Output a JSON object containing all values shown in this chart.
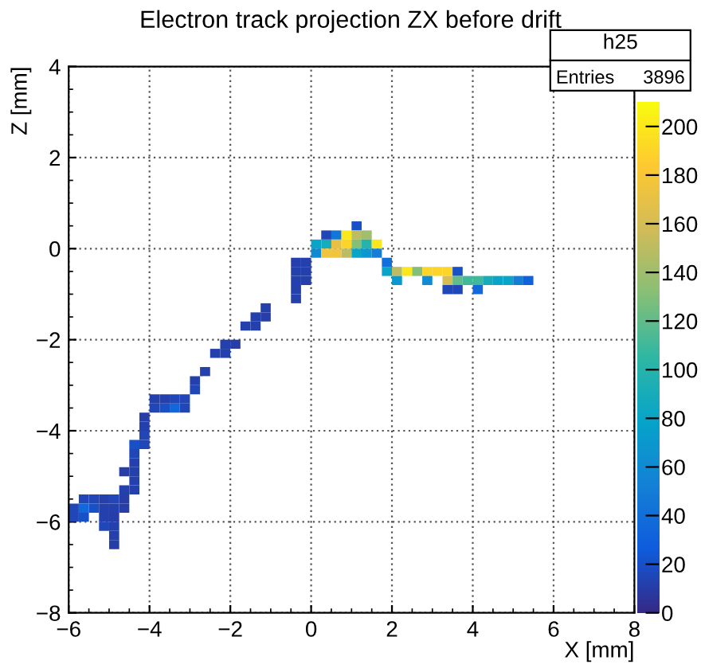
{
  "chart_data": {
    "type": "scatter",
    "title": "Electron track projection ZX before drift",
    "xlabel": "X [mm]",
    "ylabel": "Z [mm]",
    "annotations": [
      "h25",
      "Entries",
      "3896"
    ],
    "marker": "square",
    "grid": true,
    "xlim": [
      -6,
      8
    ],
    "ylim": [
      -8,
      4
    ],
    "xticks": [
      -6,
      -4,
      -2,
      0,
      2,
      4,
      6,
      8
    ],
    "yticks": [
      -8,
      -6,
      -4,
      -2,
      0,
      2,
      4
    ],
    "clim": [
      0,
      210
    ],
    "cticks": [
      0,
      20,
      40,
      60,
      80,
      100,
      120,
      140,
      160,
      180,
      200
    ],
    "x": [
      -5.625,
      -5.375,
      -5.125,
      -4.875,
      -4.625,
      -5.875,
      -5.625,
      -5.375,
      -5.125,
      -4.875,
      -4.625,
      -5.875,
      -5.625,
      -5.125,
      -4.875,
      -5.125,
      -4.875,
      -4.875,
      -4.875,
      -4.625,
      -4.375,
      -4.375,
      -4.375,
      -4.625,
      -4.375,
      -4.375,
      -4.125,
      -4.375,
      -4.125,
      -4.125,
      -4.125,
      -3.875,
      -3.875,
      -3.625,
      -3.625,
      -3.375,
      -3.375,
      -3.125,
      -3.125,
      -2.875,
      -2.875,
      -2.625,
      -2.375,
      -2.125,
      -2.125,
      -1.875,
      -1.625,
      -1.375,
      -1.375,
      -1.125,
      -1.125,
      -0.375,
      -0.375,
      -0.375,
      -0.375,
      -0.375,
      -0.125,
      -0.125,
      -0.125,
      1.125,
      0.375,
      0.625,
      0.875,
      1.125,
      1.375,
      0.125,
      0.375,
      0.625,
      0.875,
      1.125,
      1.375,
      1.625,
      0.125,
      0.375,
      0.625,
      0.875,
      1.125,
      1.375,
      1.625,
      1.875,
      1.875,
      2.125,
      2.375,
      2.625,
      2.875,
      3.125,
      3.375,
      3.625,
      2.125,
      2.875,
      3.375,
      3.625,
      3.875,
      4.125,
      4.375,
      4.625,
      4.875,
      5.125,
      5.375,
      3.375,
      3.625,
      4.125
    ],
    "values": [
      -5.5,
      -5.5,
      -5.5,
      -5.5,
      -5.5,
      -5.7,
      -5.7,
      -5.7,
      -5.7,
      -5.7,
      -5.7,
      -5.9,
      -5.9,
      -5.9,
      -5.9,
      -6.1,
      -6.1,
      -6.3,
      -6.5,
      -5.3,
      -5.3,
      -5.1,
      -4.9,
      -4.9,
      -4.7,
      -4.5,
      -4.3,
      -4.3,
      -4.1,
      -3.9,
      -3.7,
      -3.5,
      -3.3,
      -3.5,
      -3.3,
      -3.5,
      -3.3,
      -3.5,
      -3.3,
      -3.1,
      -2.9,
      -2.7,
      -2.3,
      -2.3,
      -2.1,
      -2.1,
      -1.7,
      -1.7,
      -1.5,
      -1.5,
      -1.3,
      -0.3,
      -0.5,
      -0.7,
      -0.9,
      -1.1,
      -0.3,
      -0.5,
      -0.7,
      0.5,
      0.3,
      0.3,
      0.3,
      0.3,
      0.3,
      0.1,
      0.1,
      0.1,
      0.1,
      0.1,
      0.1,
      0.1,
      -0.1,
      -0.1,
      -0.1,
      -0.1,
      -0.1,
      -0.1,
      -0.1,
      -0.3,
      -0.5,
      -0.5,
      -0.5,
      -0.5,
      -0.5,
      -0.5,
      -0.5,
      -0.5,
      -0.7,
      -0.7,
      -0.7,
      -0.7,
      -0.7,
      -0.7,
      -0.7,
      -0.7,
      -0.7,
      -0.7,
      -0.7,
      -0.9,
      -0.9,
      -0.9
    ],
    "cvalues": [
      15,
      15,
      12,
      15,
      10,
      15,
      35,
      20,
      12,
      12,
      10,
      15,
      20,
      12,
      10,
      15,
      12,
      12,
      10,
      12,
      12,
      12,
      12,
      10,
      12,
      15,
      15,
      20,
      15,
      12,
      10,
      15,
      12,
      20,
      12,
      35,
      15,
      15,
      15,
      15,
      12,
      12,
      12,
      12,
      12,
      10,
      12,
      12,
      12,
      10,
      12,
      12,
      12,
      12,
      12,
      12,
      12,
      12,
      12,
      20,
      15,
      45,
      200,
      150,
      140,
      80,
      90,
      170,
      190,
      130,
      100,
      200,
      60,
      175,
      175,
      150,
      80,
      70,
      50,
      40,
      80,
      150,
      200,
      130,
      190,
      190,
      190,
      20,
      70,
      60,
      160,
      120,
      110,
      110,
      90,
      80,
      80,
      50,
      30,
      15,
      15,
      35
    ]
  }
}
